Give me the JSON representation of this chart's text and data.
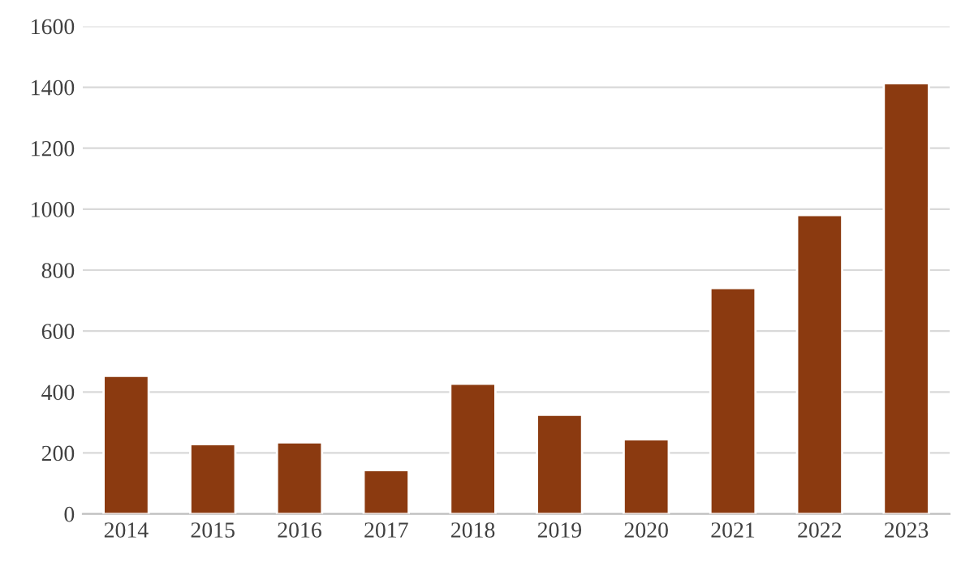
{
  "chart_data": {
    "type": "bar",
    "categories": [
      "2014",
      "2015",
      "2016",
      "2017",
      "2018",
      "2019",
      "2020",
      "2021",
      "2022",
      "2023"
    ],
    "values": [
      453,
      229,
      235,
      144,
      427,
      325,
      245,
      741,
      981,
      1413
    ],
    "color": "#8b3a10",
    "ylim": [
      0,
      1600
    ],
    "yticks": [
      0,
      200,
      400,
      600,
      800,
      1000,
      1200,
      1400,
      1600
    ],
    "grid": "y"
  }
}
